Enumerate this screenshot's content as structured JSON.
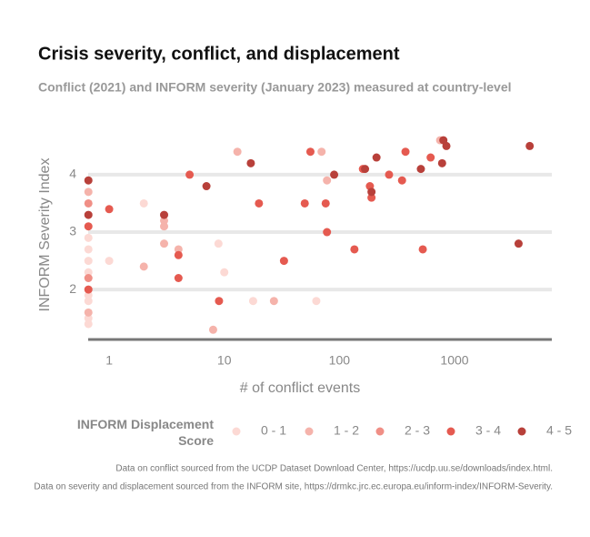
{
  "chart_data": {
    "type": "scatter",
    "title": "Crisis severity, conflict, and displacement",
    "subtitle": "Conflict (2021) and INFORM severity (January 2023) measured at country-level",
    "x_label": "# of conflict events",
    "y_label": "INFORM Severity Index",
    "legend_title": "INFORM Displacement Score",
    "log_x": true,
    "grid": true,
    "xlim": [
      0.6,
      7000
    ],
    "ylim": [
      1.13,
      4.95
    ],
    "xticks": [
      1,
      10,
      100,
      1000
    ],
    "yticks": [
      2,
      3,
      4
    ],
    "series": [
      {
        "name": "0 - 1",
        "color": "#fcd9d4",
        "x": [
          0.66,
          0.66,
          0.66,
          0.66,
          0.66,
          0.66,
          0.66,
          0.66,
          0.66,
          2,
          1,
          8.9,
          10,
          17.8,
          63
        ],
        "values": [
          1.4,
          1.5,
          1.8,
          1.9,
          2.2,
          2.3,
          2.5,
          2.7,
          2.9,
          3.5,
          2.5,
          2.8,
          2.3,
          1.8,
          1.8
        ]
      },
      {
        "name": "1 - 2",
        "color": "#f5b3ab",
        "x": [
          0.66,
          0.66,
          2,
          3,
          4,
          3,
          3,
          8,
          27,
          13,
          70,
          78,
          750
        ],
        "values": [
          1.6,
          3.7,
          2.4,
          2.8,
          2.7,
          3.2,
          3.1,
          1.3,
          1.8,
          4.4,
          4.4,
          3.9,
          4.6
        ]
      },
      {
        "name": "2 - 3",
        "color": "#f08f86",
        "x": [
          0.66,
          0.66
        ],
        "values": [
          3.5,
          2.2
        ]
      },
      {
        "name": "3 - 4",
        "color": "#e55a50",
        "x": [
          0.66,
          0.66,
          1,
          4,
          4,
          5,
          9,
          20,
          33,
          50,
          56,
          76,
          78,
          135,
          184,
          190,
          160,
          270,
          350,
          375,
          620,
          530
        ],
        "values": [
          3.1,
          2,
          3.4,
          2.6,
          2.2,
          4.0,
          1.8,
          3.5,
          2.5,
          3.5,
          4.4,
          3.5,
          3.0,
          2.7,
          3.8,
          3.6,
          4.1,
          4.0,
          3.9,
          4.4,
          4.3,
          2.7
        ]
      },
      {
        "name": "4 - 5",
        "color": "#b8403a",
        "x": [
          0.66,
          0.66,
          3,
          7,
          17,
          90,
          167,
          190,
          210,
          510,
          780,
          800,
          850,
          3600,
          4500
        ],
        "values": [
          3.9,
          3.3,
          3.3,
          3.8,
          4.2,
          4.0,
          4.1,
          3.7,
          4.3,
          4.1,
          4.2,
          4.6,
          4.5,
          2.8,
          4.5
        ]
      }
    ],
    "notes": [
      "Data on conflict sourced from the UCDP Dataset Download Center, https://ucdp.uu.se/downloads/index.html.",
      "Data on severity and displacement sourced from the INFORM site, https://drmkc.jrc.ec.europa.eu/inform-index/INFORM-Severity."
    ]
  }
}
